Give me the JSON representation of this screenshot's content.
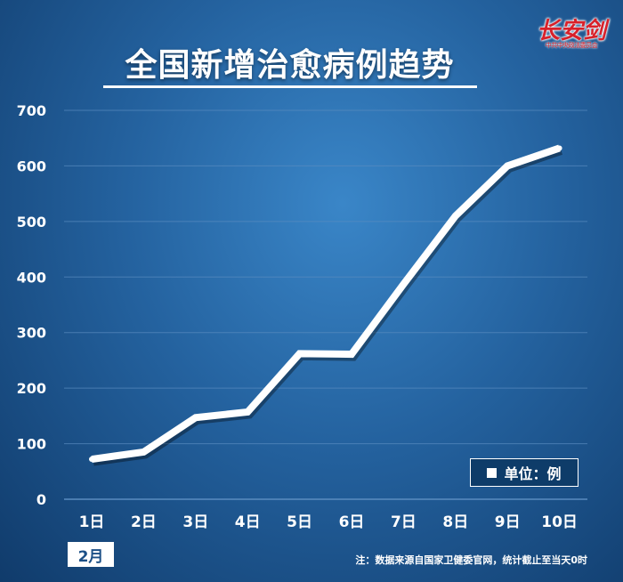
{
  "title": "全国新增治愈病例趋势",
  "logo": {
    "main": "长安剑",
    "sub": "中共中央政法委员会"
  },
  "legend": {
    "label": "单位：例"
  },
  "month_label": "2月",
  "source_note": "注：数据来源自国家卫健委官网，统计截止至当天0时",
  "colors": {
    "line": "#ffffff",
    "axis_text": "#ffffff",
    "grid": "#5a8cc0"
  },
  "chart_data": {
    "type": "line",
    "title": "全国新增治愈病例趋势",
    "categories": [
      "1日",
      "2日",
      "3日",
      "4日",
      "5日",
      "6日",
      "7日",
      "8日",
      "9日",
      "10日"
    ],
    "series": [
      {
        "values": [
          72,
          85,
          147,
          157,
          262,
          261,
          387,
          510,
          600,
          632
        ]
      }
    ],
    "yticks": [
      0,
      100,
      200,
      300,
      400,
      500,
      600,
      700
    ],
    "ylim": [
      0,
      700
    ],
    "grid": true
  }
}
